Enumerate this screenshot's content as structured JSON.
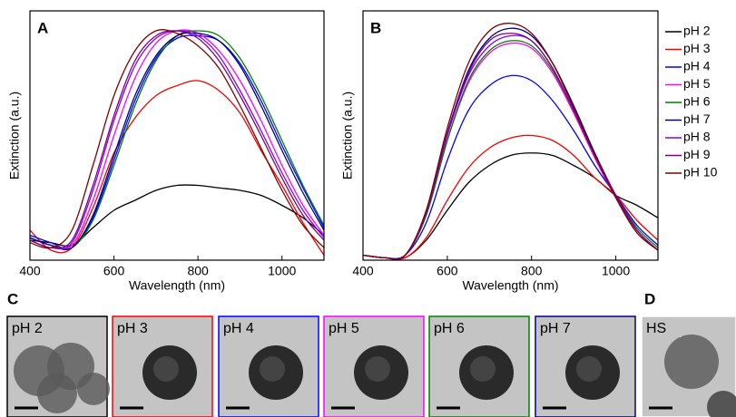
{
  "chart_data": [
    {
      "type": "line",
      "panel_label": "A",
      "xlabel": "Wavelength (nm)",
      "ylabel": "Extinction (a.u.)",
      "x": [
        400,
        450,
        500,
        550,
        600,
        650,
        700,
        750,
        800,
        850,
        900,
        950,
        1000,
        1050,
        1100
      ],
      "xlim": [
        400,
        1100
      ],
      "xticks": [
        400,
        600,
        800,
        1000
      ],
      "ylim": [
        0,
        100
      ],
      "series": [
        {
          "color": "#000000",
          "values": [
            8,
            7,
            6,
            13,
            20,
            24,
            28,
            30,
            30,
            29,
            28,
            26,
            22,
            17,
            10
          ]
        },
        {
          "color": "#ff0000",
          "values": [
            12,
            4,
            5,
            21,
            43,
            57,
            66,
            70,
            72,
            68,
            59,
            44,
            30,
            15,
            2
          ]
        },
        {
          "color": "#0000ff",
          "values": [
            10,
            7,
            5,
            17,
            40,
            64,
            81,
            89,
            90,
            88,
            79,
            64,
            46,
            29,
            13
          ]
        },
        {
          "color": "#ff00ff",
          "values": [
            9,
            6,
            6,
            24,
            50,
            73,
            87,
            92,
            91,
            84,
            72,
            56,
            38,
            22,
            10
          ]
        },
        {
          "color": "#008000",
          "values": [
            9,
            6,
            5,
            16,
            38,
            62,
            80,
            90,
            92,
            90,
            81,
            66,
            48,
            30,
            14
          ]
        },
        {
          "color": "#000080",
          "values": [
            9,
            6,
            5,
            18,
            42,
            66,
            82,
            90,
            91,
            88,
            78,
            62,
            44,
            27,
            12
          ]
        },
        {
          "color": "#8000ff",
          "values": [
            8,
            5,
            7,
            28,
            56,
            78,
            89,
            92,
            90,
            82,
            68,
            52,
            35,
            20,
            9
          ]
        },
        {
          "color": "#800080",
          "values": [
            8,
            5,
            8,
            30,
            58,
            80,
            90,
            92,
            89,
            80,
            66,
            50,
            33,
            18,
            8
          ]
        },
        {
          "color": "#800000",
          "values": [
            7,
            5,
            12,
            38,
            66,
            84,
            92,
            91,
            86,
            77,
            62,
            45,
            28,
            14,
            5
          ]
        }
      ]
    },
    {
      "type": "line",
      "panel_label": "B",
      "xlabel": "Wavelength (nm)",
      "ylabel": "Extinction (a.u.)",
      "x": [
        400,
        450,
        500,
        550,
        600,
        650,
        700,
        750,
        800,
        850,
        900,
        950,
        1000,
        1050,
        1100
      ],
      "xlim": [
        400,
        1100
      ],
      "xticks": [
        400,
        600,
        800,
        1000
      ],
      "ylim": [
        0,
        100
      ],
      "series": [
        {
          "name": "pH 2",
          "color": "#000000",
          "values": [
            2,
            1,
            1,
            8,
            20,
            31,
            38,
            42,
            43,
            42,
            38,
            33,
            26,
            22,
            17
          ]
        },
        {
          "name": "pH 3",
          "color": "#ff0000",
          "values": [
            2,
            1,
            1,
            9,
            24,
            37,
            45,
            49,
            50,
            48,
            42,
            33,
            26,
            16,
            8
          ]
        },
        {
          "name": "pH 4",
          "color": "#0000ff",
          "values": [
            2,
            1,
            2,
            15,
            40,
            60,
            70,
            74,
            72,
            64,
            52,
            38,
            26,
            14,
            6
          ]
        },
        {
          "name": "pH 5",
          "color": "#ff00ff",
          "values": [
            2,
            1,
            2,
            18,
            48,
            71,
            83,
            87,
            85,
            75,
            59,
            41,
            25,
            12,
            4
          ]
        },
        {
          "name": "pH 6",
          "color": "#008000",
          "values": [
            2,
            1,
            2,
            18,
            48,
            72,
            84,
            88,
            86,
            76,
            60,
            42,
            26,
            13,
            5
          ]
        },
        {
          "name": "pH 7",
          "color": "#000080",
          "values": [
            2,
            1,
            2,
            19,
            51,
            76,
            89,
            93,
            90,
            79,
            62,
            43,
            26,
            12,
            4
          ]
        },
        {
          "name": "pH 8",
          "color": "#8000ff",
          "values": [
            2,
            1,
            2,
            19,
            50,
            74,
            86,
            90,
            88,
            77,
            60,
            42,
            26,
            12,
            4
          ]
        },
        {
          "name": "pH 9",
          "color": "#800080",
          "values": [
            2,
            1,
            2,
            19,
            51,
            75,
            88,
            91,
            88,
            77,
            60,
            42,
            26,
            12,
            4
          ]
        },
        {
          "name": "pH 10",
          "color": "#800000",
          "values": [
            2,
            1,
            2,
            20,
            53,
            79,
            92,
            95,
            91,
            79,
            61,
            42,
            25,
            11,
            4
          ]
        }
      ]
    }
  ],
  "image_panels": {
    "label_c": "C",
    "label_d": "D",
    "panels": [
      {
        "label": "pH 2",
        "border": "#000000"
      },
      {
        "label": "pH 3",
        "border": "#ff0000"
      },
      {
        "label": "pH 4",
        "border": "#0000ff"
      },
      {
        "label": "pH 5",
        "border": "#ff00ff"
      },
      {
        "label": "pH 6",
        "border": "#008000"
      },
      {
        "label": "pH 7",
        "border": "#000080"
      },
      {
        "label": "HS",
        "border": "#ffffff"
      }
    ]
  }
}
